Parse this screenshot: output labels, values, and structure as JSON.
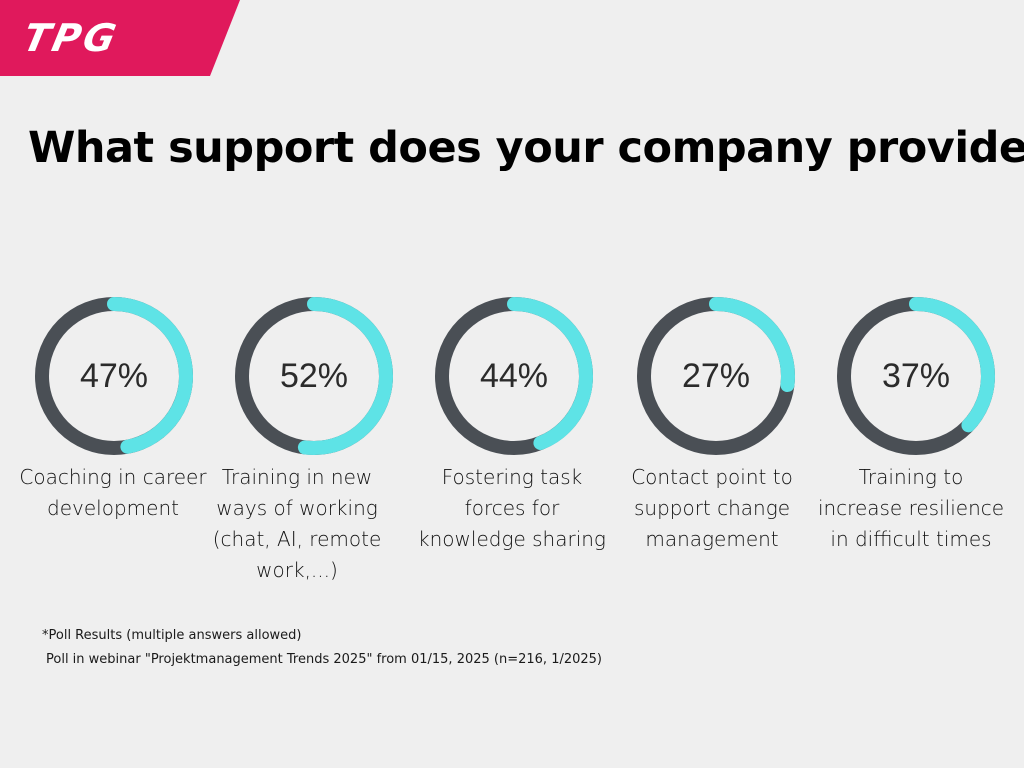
{
  "logo": {
    "text": "TPG",
    "color": "#e0195c"
  },
  "title": "What support does your company provide?",
  "chart_data": {
    "type": "donut",
    "track_color": "#4a4f55",
    "fill_color": "#5ee3e6",
    "items": [
      {
        "value": 47,
        "value_label": "47%",
        "label": "Coaching in career development"
      },
      {
        "value": 52,
        "value_label": "52%",
        "label": "Training in new ways of working (chat, AI, remote work,...)"
      },
      {
        "value": 44,
        "value_label": "44%",
        "label": "Fostering task forces for knowledge sharing"
      },
      {
        "value": 27,
        "value_label": "27%",
        "label": "Contact point to support change management"
      },
      {
        "value": 37,
        "value_label": "37%",
        "label": "Training to increase resilience in difficult times"
      }
    ]
  },
  "footnotes": {
    "line1": "*Poll Results (multiple answers allowed)",
    "line2": "Poll in webinar \"Projektmanagement Trends 2025\" from 01/15, 2025 (n=216, 1/2025)"
  }
}
